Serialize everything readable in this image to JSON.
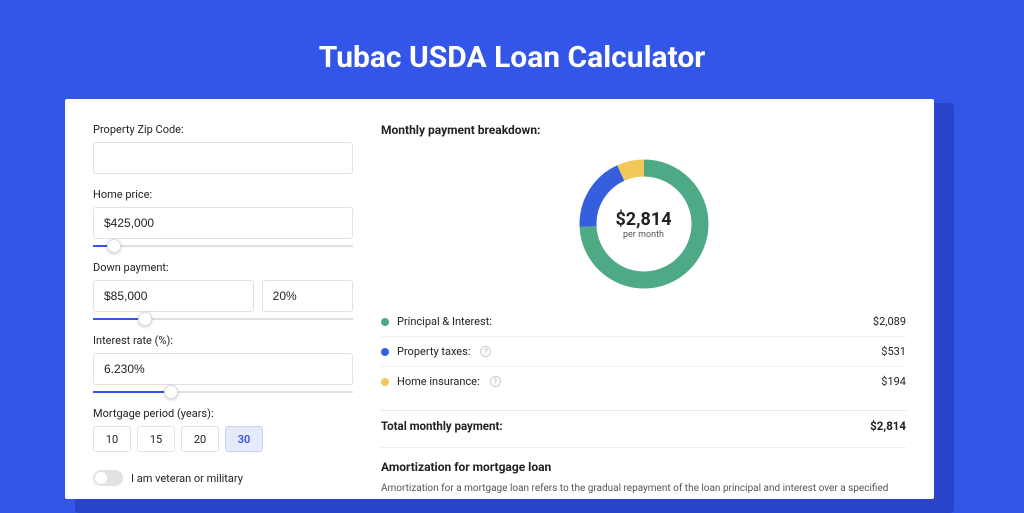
{
  "page_title": "Tubac USDA Loan Calculator",
  "colors": {
    "page_bg": "#3355e8",
    "shadow": "#2944c9",
    "card_bg": "#ffffff",
    "accent": "#3355e8",
    "border": "#e2e2e2",
    "text": "#222222",
    "muted": "#555555"
  },
  "form": {
    "zip": {
      "label": "Property Zip Code:",
      "value": ""
    },
    "home_price": {
      "label": "Home price:",
      "value": "$425,000",
      "slider_percent": 8
    },
    "down_payment": {
      "label": "Down payment:",
      "value": "$85,000",
      "percent": "20%",
      "slider_percent": 20
    },
    "interest_rate": {
      "label": "Interest rate (%):",
      "value": "6.230%",
      "slider_percent": 30
    },
    "mortgage_period": {
      "label": "Mortgage period (years):",
      "options": [
        "10",
        "15",
        "20",
        "30"
      ],
      "selected": "30"
    },
    "veteran": {
      "label": "I am veteran or military",
      "checked": false
    }
  },
  "breakdown": {
    "title": "Monthly payment breakdown:",
    "donut": {
      "center_amount": "$2,814",
      "center_sub": "per month",
      "type": "donut",
      "radius": 56,
      "stroke_width": 17,
      "background_color": "#ffffff",
      "slices": [
        {
          "key": "principal_interest",
          "value": 2089,
          "percent": 74.2,
          "color": "#4ea985"
        },
        {
          "key": "property_taxes",
          "value": 531,
          "percent": 18.9,
          "color": "#355fdd"
        },
        {
          "key": "home_insurance",
          "value": 194,
          "percent": 6.9,
          "color": "#f2c85b"
        }
      ]
    },
    "rows": [
      {
        "label": "Principal & Interest:",
        "value": "$2,089",
        "color": "#4ea985",
        "help": false
      },
      {
        "label": "Property taxes:",
        "value": "$531",
        "color": "#355fdd",
        "help": true
      },
      {
        "label": "Home insurance:",
        "value": "$194",
        "color": "#f2c85b",
        "help": true
      }
    ],
    "total": {
      "label": "Total monthly payment:",
      "value": "$2,814"
    }
  },
  "amortization": {
    "title": "Amortization for mortgage loan",
    "text": "Amortization for a mortgage loan refers to the gradual repayment of the loan principal and interest over a specified"
  }
}
